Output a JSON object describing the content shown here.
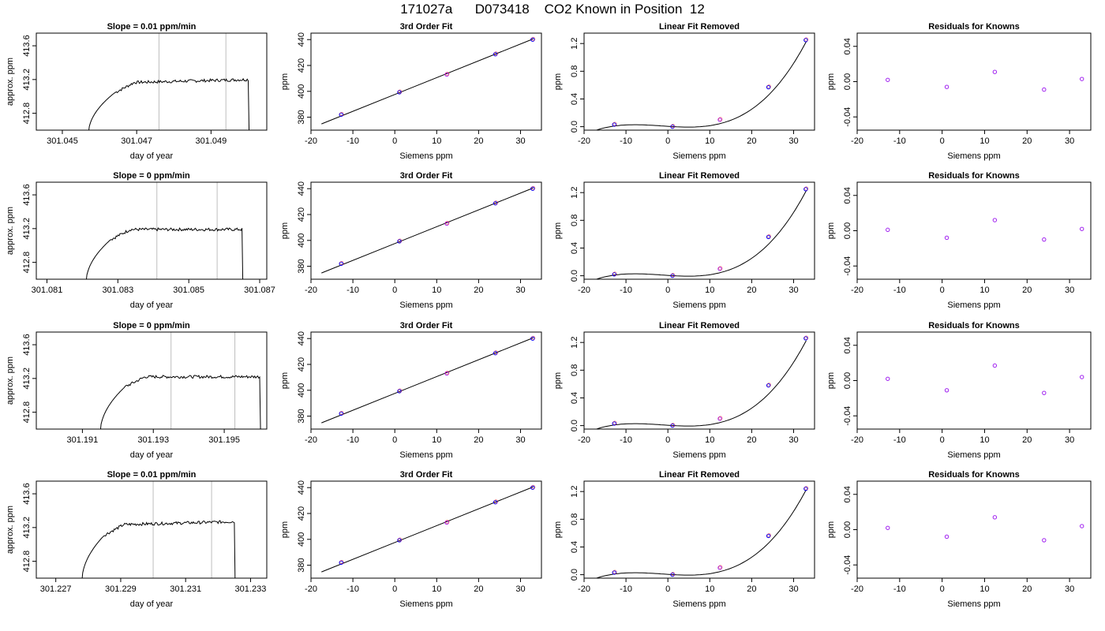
{
  "title": "171027a      D073418    CO2 Known in Position  12",
  "colors": {
    "line": "#000000",
    "vline": "#bebebe",
    "blue": "#0000ff",
    "red": "#ff0000",
    "purple": "#a020f0"
  },
  "chart_data": [
    {
      "type": "line",
      "title": "Slope =  0.01  ppm/min",
      "xlabel": "day of year",
      "ylabel": "approx. ppm",
      "xlim": [
        301.0443,
        301.0505
      ],
      "ylim": [
        412.6,
        413.75
      ],
      "xticks": [
        301.045,
        301.047,
        301.049
      ],
      "xticklabels": [
        "301.045",
        "301.047",
        "301.049"
      ],
      "yticks": [
        412.8,
        413.2,
        413.6
      ],
      "yticklabels": [
        "412.8",
        "413.2",
        "413.6"
      ],
      "vlines": [
        301.0476,
        301.0494
      ],
      "trace": {
        "start": 301.0457,
        "end": 301.05,
        "rise_end": 301.0464,
        "plateau": 413.16,
        "slope": 4
      }
    },
    {
      "type": "scatter",
      "title": "3rd Order Fit",
      "xlabel": "Siemens ppm",
      "ylabel": "ppm",
      "xlim": [
        -20,
        35
      ],
      "ylim": [
        370,
        445
      ],
      "xticks": [
        -20,
        -10,
        0,
        10,
        20,
        30
      ],
      "yticks": [
        380,
        400,
        420,
        440
      ],
      "points": [
        [
          -12.8,
          382
        ],
        [
          1.1,
          399.3
        ],
        [
          12.4,
          413
        ],
        [
          24,
          428.7
        ],
        [
          32.9,
          440
        ]
      ],
      "fit": [
        [
          -17.5,
          374.8
        ],
        [
          33,
          440.5
        ]
      ]
    },
    {
      "type": "scatter",
      "title": "Linear Fit Removed",
      "xlabel": "Siemens ppm",
      "ylabel": "ppm",
      "xlim": [
        -20,
        35
      ],
      "ylim": [
        -0.05,
        1.35
      ],
      "xticks": [
        -20,
        -10,
        0,
        10,
        20,
        30
      ],
      "yticks": [
        0.0,
        0.4,
        0.8,
        1.2
      ],
      "yticklabels": [
        "0.0",
        "0.4",
        "0.8",
        "1.2"
      ],
      "points": [
        [
          -12.8,
          0.03
        ],
        [
          1.1,
          0.0
        ],
        [
          12.4,
          0.1
        ],
        [
          24,
          0.57
        ],
        [
          32.9,
          1.25
        ]
      ],
      "curve": [
        -17.5,
        33
      ]
    },
    {
      "type": "scatter",
      "title": "Residuals for Knowns",
      "xlabel": "Siemens ppm",
      "ylabel": "ppm",
      "xlim": [
        -20,
        35
      ],
      "ylim": [
        -0.055,
        0.055
      ],
      "xticks": [
        -20,
        -10,
        0,
        10,
        20,
        30
      ],
      "yticks": [
        -0.04,
        0.0,
        0.04
      ],
      "yticklabels": [
        "-0.04",
        "0.00",
        "0.04"
      ],
      "points": [
        [
          -12.8,
          0.002
        ],
        [
          1.1,
          -0.006
        ],
        [
          12.4,
          0.011
        ],
        [
          24,
          -0.009
        ],
        [
          32.9,
          0.003
        ]
      ]
    },
    {
      "type": "line",
      "title": "Slope =  0  ppm/min",
      "xlabel": "day of year",
      "ylabel": "approx. ppm",
      "xlim": [
        301.0807,
        301.0872
      ],
      "ylim": [
        412.6,
        413.75
      ],
      "xticks": [
        301.081,
        301.083,
        301.085,
        301.087
      ],
      "xticklabels": [
        "301.081",
        "301.083",
        "301.085",
        "301.087"
      ],
      "yticks": [
        412.8,
        413.2,
        413.6
      ],
      "yticklabels": [
        "412.8",
        "413.2",
        "413.6"
      ],
      "vlines": [
        301.0841,
        301.0858
      ],
      "trace": {
        "start": 301.0821,
        "end": 301.0865,
        "rise_end": 301.0828,
        "plateau": 413.19,
        "slope": 0
      }
    },
    {
      "type": "scatter",
      "title": "3rd Order Fit",
      "xlabel": "Siemens ppm",
      "ylabel": "ppm",
      "xlim": [
        -20,
        35
      ],
      "ylim": [
        370,
        445
      ],
      "xticks": [
        -20,
        -10,
        0,
        10,
        20,
        30
      ],
      "yticks": [
        380,
        400,
        420,
        440
      ],
      "points": [
        [
          -12.8,
          382
        ],
        [
          1.1,
          399.3
        ],
        [
          12.4,
          413
        ],
        [
          24,
          428.7
        ],
        [
          32.9,
          440
        ]
      ],
      "fit": [
        [
          -17.5,
          374.8
        ],
        [
          33,
          440.5
        ]
      ]
    },
    {
      "type": "scatter",
      "title": "Linear Fit Removed",
      "xlabel": "Siemens ppm",
      "ylabel": "ppm",
      "xlim": [
        -20,
        35
      ],
      "ylim": [
        -0.05,
        1.35
      ],
      "xticks": [
        -20,
        -10,
        0,
        10,
        20,
        30
      ],
      "yticks": [
        0.0,
        0.4,
        0.8,
        1.2
      ],
      "yticklabels": [
        "0.0",
        "0.4",
        "0.8",
        "1.2"
      ],
      "points": [
        [
          -12.8,
          0.02
        ],
        [
          1.1,
          0.0
        ],
        [
          12.4,
          0.1
        ],
        [
          24,
          0.56
        ],
        [
          32.9,
          1.25
        ]
      ],
      "curve": [
        -17.5,
        33
      ]
    },
    {
      "type": "scatter",
      "title": "Residuals for Knowns",
      "xlabel": "Siemens ppm",
      "ylabel": "ppm",
      "xlim": [
        -20,
        35
      ],
      "ylim": [
        -0.055,
        0.055
      ],
      "xticks": [
        -20,
        -10,
        0,
        10,
        20,
        30
      ],
      "yticks": [
        -0.04,
        0.0,
        0.04
      ],
      "yticklabels": [
        "-0.04",
        "0.00",
        "0.04"
      ],
      "points": [
        [
          -12.8,
          0.001
        ],
        [
          1.1,
          -0.008
        ],
        [
          12.4,
          0.012
        ],
        [
          24,
          -0.01
        ],
        [
          32.9,
          0.002
        ]
      ]
    },
    {
      "type": "line",
      "title": "Slope =  0  ppm/min",
      "xlabel": "day of year",
      "ylabel": "approx. ppm",
      "xlim": [
        301.1897,
        301.1962
      ],
      "ylim": [
        412.6,
        413.75
      ],
      "xticks": [
        301.191,
        301.193,
        301.195
      ],
      "xticklabels": [
        "301.191",
        "301.193",
        "301.195"
      ],
      "yticks": [
        412.8,
        413.2,
        413.6
      ],
      "yticklabels": [
        "412.8",
        "413.2",
        "413.6"
      ],
      "vlines": [
        301.1935,
        301.1953
      ],
      "trace": {
        "start": 301.1915,
        "end": 301.196,
        "rise_end": 301.1922,
        "plateau": 413.22,
        "slope": 0
      }
    },
    {
      "type": "scatter",
      "title": "3rd Order Fit",
      "xlabel": "Siemens ppm",
      "ylabel": "ppm",
      "xlim": [
        -20,
        35
      ],
      "ylim": [
        370,
        445
      ],
      "xticks": [
        -20,
        -10,
        0,
        10,
        20,
        30
      ],
      "yticks": [
        380,
        400,
        420,
        440
      ],
      "points": [
        [
          -12.8,
          382
        ],
        [
          1.1,
          399.3
        ],
        [
          12.4,
          413
        ],
        [
          24,
          428.7
        ],
        [
          32.9,
          440
        ]
      ],
      "fit": [
        [
          -17.5,
          374.8
        ],
        [
          33,
          440.5
        ]
      ]
    },
    {
      "type": "scatter",
      "title": "Linear Fit Removed",
      "xlabel": "Siemens ppm",
      "ylabel": "ppm",
      "xlim": [
        -20,
        35
      ],
      "ylim": [
        -0.05,
        1.35
      ],
      "xticks": [
        -20,
        -10,
        0,
        10,
        20,
        30
      ],
      "yticks": [
        0.0,
        0.4,
        0.8,
        1.2
      ],
      "yticklabels": [
        "0.0",
        "0.4",
        "0.8",
        "1.2"
      ],
      "points": [
        [
          -12.8,
          0.03
        ],
        [
          1.1,
          0.0
        ],
        [
          12.4,
          0.1
        ],
        [
          24,
          0.58
        ],
        [
          32.9,
          1.26
        ]
      ],
      "curve": [
        -17.5,
        33
      ]
    },
    {
      "type": "scatter",
      "title": "Residuals for Knowns",
      "xlabel": "Siemens ppm",
      "ylabel": "ppm",
      "xlim": [
        -20,
        35
      ],
      "ylim": [
        -0.055,
        0.055
      ],
      "xticks": [
        -20,
        -10,
        0,
        10,
        20,
        30
      ],
      "yticks": [
        -0.04,
        0.0,
        0.04
      ],
      "yticklabels": [
        "-0.04",
        "0.00",
        "0.04"
      ],
      "points": [
        [
          -12.8,
          0.002
        ],
        [
          1.1,
          -0.011
        ],
        [
          12.4,
          0.017
        ],
        [
          24,
          -0.014
        ],
        [
          32.9,
          0.004
        ]
      ]
    },
    {
      "type": "line",
      "title": "Slope =  0.01  ppm/min",
      "xlabel": "day of year",
      "ylabel": "approx. ppm",
      "xlim": [
        301.2264,
        301.2335
      ],
      "ylim": [
        412.6,
        413.75
      ],
      "xticks": [
        301.227,
        301.229,
        301.231,
        301.233
      ],
      "xticklabels": [
        "301.227",
        "301.229",
        "301.231",
        "301.233"
      ],
      "yticks": [
        412.8,
        413.2,
        413.6
      ],
      "yticklabels": [
        "412.8",
        "413.2",
        "413.6"
      ],
      "vlines": [
        301.23,
        301.2318
      ],
      "trace": {
        "start": 301.2278,
        "end": 301.2325,
        "rise_end": 301.2285,
        "plateau": 413.23,
        "slope": 4
      }
    },
    {
      "type": "scatter",
      "title": "3rd Order Fit",
      "xlabel": "Siemens ppm",
      "ylabel": "ppm",
      "xlim": [
        -20,
        35
      ],
      "ylim": [
        370,
        445
      ],
      "xticks": [
        -20,
        -10,
        0,
        10,
        20,
        30
      ],
      "yticks": [
        380,
        400,
        420,
        440
      ],
      "points": [
        [
          -12.8,
          382
        ],
        [
          1.1,
          399.3
        ],
        [
          12.4,
          413
        ],
        [
          24,
          428.7
        ],
        [
          32.9,
          440
        ]
      ],
      "fit": [
        [
          -17.5,
          374.8
        ],
        [
          33,
          440.5
        ]
      ]
    },
    {
      "type": "scatter",
      "title": "Linear Fit Removed",
      "xlabel": "Siemens ppm",
      "ylabel": "ppm",
      "xlim": [
        -20,
        35
      ],
      "ylim": [
        -0.05,
        1.35
      ],
      "xticks": [
        -20,
        -10,
        0,
        10,
        20,
        30
      ],
      "yticks": [
        0.0,
        0.4,
        0.8,
        1.2
      ],
      "yticklabels": [
        "0.0",
        "0.4",
        "0.8",
        "1.2"
      ],
      "points": [
        [
          -12.8,
          0.03
        ],
        [
          1.1,
          0.0
        ],
        [
          12.4,
          0.1
        ],
        [
          24,
          0.56
        ],
        [
          32.9,
          1.24
        ]
      ],
      "curve": [
        -17.5,
        33
      ]
    },
    {
      "type": "scatter",
      "title": "Residuals for Knowns",
      "xlabel": "Siemens ppm",
      "ylabel": "ppm",
      "xlim": [
        -20,
        35
      ],
      "ylim": [
        -0.055,
        0.055
      ],
      "xticks": [
        -20,
        -10,
        0,
        10,
        20,
        30
      ],
      "yticks": [
        -0.04,
        0.0,
        0.04
      ],
      "yticklabels": [
        "-0.04",
        "0.00",
        "0.04"
      ],
      "points": [
        [
          -12.8,
          0.002
        ],
        [
          1.1,
          -0.008
        ],
        [
          12.4,
          0.014
        ],
        [
          24,
          -0.012
        ],
        [
          32.9,
          0.004
        ]
      ]
    }
  ]
}
